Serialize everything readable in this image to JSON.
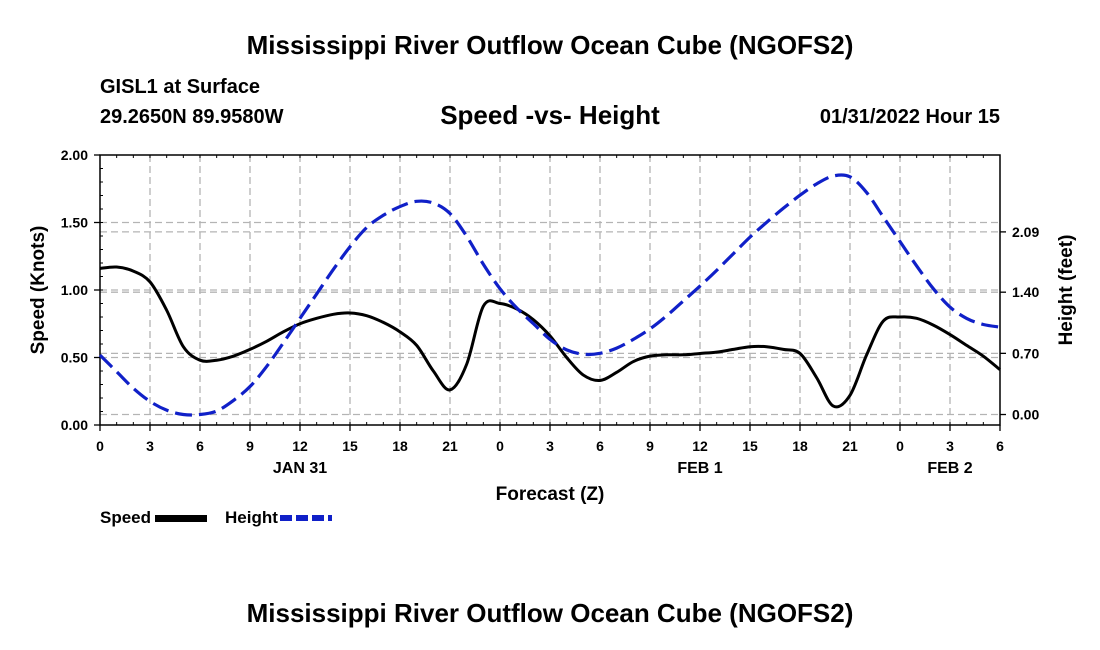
{
  "header": {
    "title": "Mississippi River Outflow Ocean Cube (NGOFS2)",
    "footer_title": "Mississippi River Outflow Ocean Cube (NGOFS2)",
    "station": "GISL1 at Surface",
    "coords": "29.2650N  89.9580W",
    "datetime": "01/31/2022 Hour 15"
  },
  "legend": {
    "speed": "Speed",
    "height": "Height"
  },
  "colors": {
    "speed": "#000000",
    "height": "#1020c8",
    "grid": "#b4b4b4"
  },
  "chart_data": {
    "type": "line",
    "title": "Speed -vs- Height",
    "xlabel": "Forecast (Z)",
    "ylabel": "Speed (Knots)",
    "ylabel_right": "Height (feet)",
    "x_hour_range": [
      0,
      54
    ],
    "x_ticks": [
      "0",
      "3",
      "6",
      "9",
      "12",
      "15",
      "18",
      "21",
      "0",
      "3",
      "6",
      "9",
      "12",
      "15",
      "18",
      "21",
      "0",
      "3",
      "6"
    ],
    "date_labels": [
      {
        "label": "JAN 31",
        "hour": 12
      },
      {
        "label": "FEB 1",
        "hour": 36
      },
      {
        "label": "FEB 2",
        "hour": 51
      }
    ],
    "ylim": [
      0,
      2
    ],
    "y_ticks": [
      "0.00",
      "0.50",
      "1.00",
      "1.50",
      "2.00"
    ],
    "y2lim": [
      -0.12,
      2.97
    ],
    "y2_ticks": [
      "0.00",
      "0.70",
      "1.40",
      "2.09"
    ],
    "series": [
      {
        "name": "Speed",
        "axis": "left",
        "style": "solid",
        "x": [
          0,
          1,
          2,
          3,
          4,
          5,
          6,
          7,
          8,
          9,
          10,
          11,
          12,
          13,
          14,
          15,
          16,
          17,
          18,
          19,
          20,
          21,
          22,
          23,
          24,
          25,
          26,
          27,
          28,
          29,
          30,
          31,
          32,
          33,
          34,
          35,
          36,
          37,
          38,
          39,
          40,
          41,
          42,
          43,
          44,
          45,
          46,
          47,
          48,
          49,
          50,
          51,
          52,
          53,
          54
        ],
        "values": [
          1.16,
          1.17,
          1.14,
          1.06,
          0.85,
          0.58,
          0.48,
          0.48,
          0.51,
          0.56,
          0.62,
          0.69,
          0.75,
          0.79,
          0.82,
          0.83,
          0.81,
          0.76,
          0.69,
          0.59,
          0.4,
          0.26,
          0.45,
          0.88,
          0.9,
          0.86,
          0.78,
          0.66,
          0.5,
          0.37,
          0.33,
          0.39,
          0.47,
          0.51,
          0.52,
          0.52,
          0.53,
          0.54,
          0.56,
          0.58,
          0.58,
          0.56,
          0.53,
          0.35,
          0.14,
          0.22,
          0.52,
          0.77,
          0.8,
          0.79,
          0.74,
          0.67,
          0.59,
          0.51,
          0.41
        ]
      },
      {
        "name": "Height",
        "axis": "right",
        "style": "dashed",
        "x": [
          0,
          1,
          2,
          3,
          4,
          5,
          6,
          7,
          8,
          9,
          10,
          11,
          12,
          13,
          14,
          15,
          16,
          17,
          18,
          19,
          20,
          21,
          22,
          23,
          24,
          25,
          26,
          27,
          28,
          29,
          30,
          31,
          32,
          33,
          34,
          35,
          36,
          37,
          38,
          39,
          40,
          41,
          42,
          43,
          44,
          45,
          46,
          47,
          48,
          49,
          50,
          51,
          52,
          53,
          54
        ],
        "values": [
          0.68,
          0.49,
          0.3,
          0.15,
          0.05,
          0.0,
          0.0,
          0.04,
          0.16,
          0.32,
          0.55,
          0.82,
          1.1,
          1.38,
          1.66,
          1.92,
          2.14,
          2.28,
          2.38,
          2.44,
          2.42,
          2.3,
          2.04,
          1.72,
          1.44,
          1.22,
          1.04,
          0.86,
          0.74,
          0.69,
          0.7,
          0.76,
          0.86,
          0.98,
          1.13,
          1.3,
          1.47,
          1.65,
          1.84,
          2.03,
          2.2,
          2.36,
          2.51,
          2.64,
          2.73,
          2.72,
          2.54,
          2.26,
          1.98,
          1.7,
          1.44,
          1.23,
          1.1,
          1.03,
          1.0
        ]
      }
    ]
  }
}
